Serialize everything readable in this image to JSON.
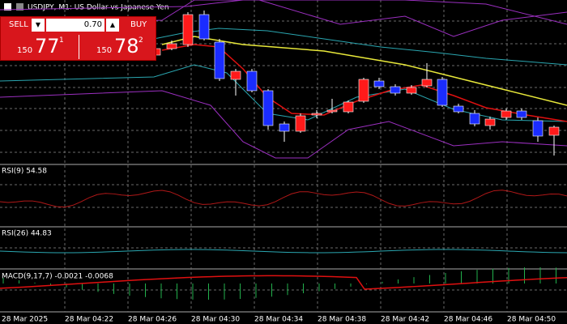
{
  "window": {
    "title": "USDJPY, M1: US Dollar vs Japanese Yen"
  },
  "trade_panel": {
    "sell_label": "SELL",
    "volume": "0.70",
    "buy_label": "BUY",
    "sell_price": {
      "big": "150",
      "main": "77",
      "small": "1"
    },
    "buy_price": {
      "big": "150",
      "main": "78",
      "small": "2"
    }
  },
  "indicators": [
    "RSI(9) 54.58",
    "RSI(26) 44.83",
    "MACD(9,17,7) -0.0021 -0.0068"
  ],
  "time_axis": [
    "28 Mar 2025",
    "28 Mar 04:22",
    "28 Mar 04:26",
    "28 Mar 04:30",
    "28 Mar 04:34",
    "28 Mar 04:38",
    "28 Mar 04:42",
    "28 Mar 04:46",
    "28 Mar 04:50"
  ]
}
